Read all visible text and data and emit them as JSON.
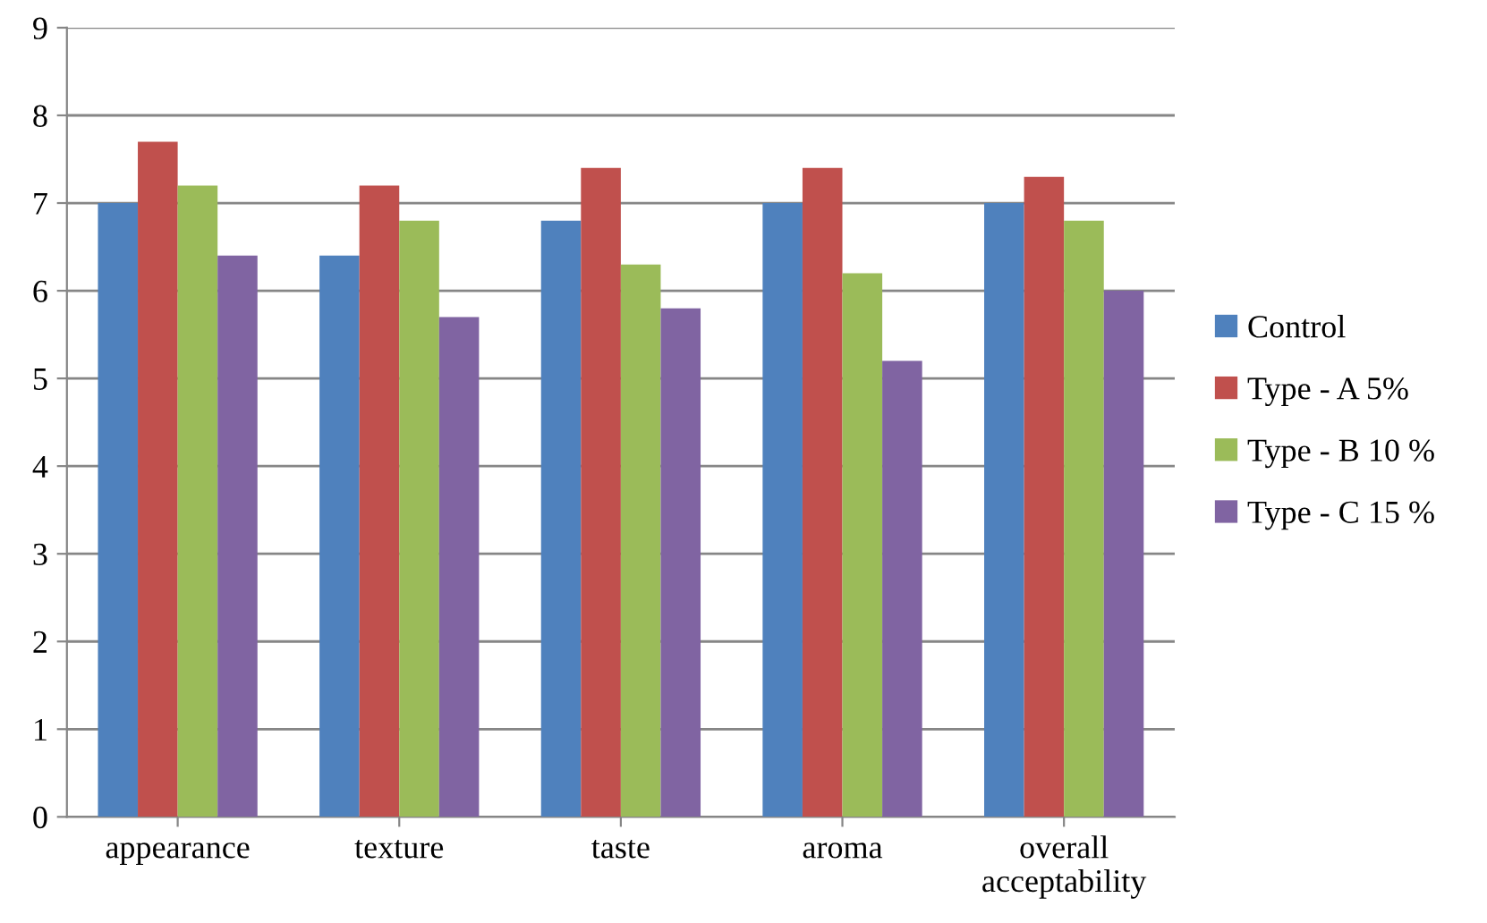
{
  "chart_data": {
    "type": "bar",
    "categories": [
      "appearance",
      "texture",
      "taste",
      "aroma",
      "overall\nacceptability"
    ],
    "series": [
      {
        "name": "Control",
        "color": "#4f81bd",
        "values": [
          7.0,
          6.4,
          6.8,
          7.0,
          7.0
        ]
      },
      {
        "name": "Type - A 5%",
        "color": "#c0504d",
        "values": [
          7.7,
          7.2,
          7.4,
          7.4,
          7.3
        ]
      },
      {
        "name": "Type - B 10 %",
        "color": "#9bbb59",
        "values": [
          7.2,
          6.8,
          6.3,
          6.2,
          6.8
        ]
      },
      {
        "name": "Type - C 15 %",
        "color": "#8064a2",
        "values": [
          6.4,
          5.7,
          5.8,
          5.2,
          6.0
        ]
      }
    ],
    "ylim": [
      0,
      9
    ],
    "yticks": [
      0,
      1,
      2,
      3,
      4,
      5,
      6,
      7,
      8,
      9
    ],
    "grid": "y",
    "legend": "right"
  }
}
